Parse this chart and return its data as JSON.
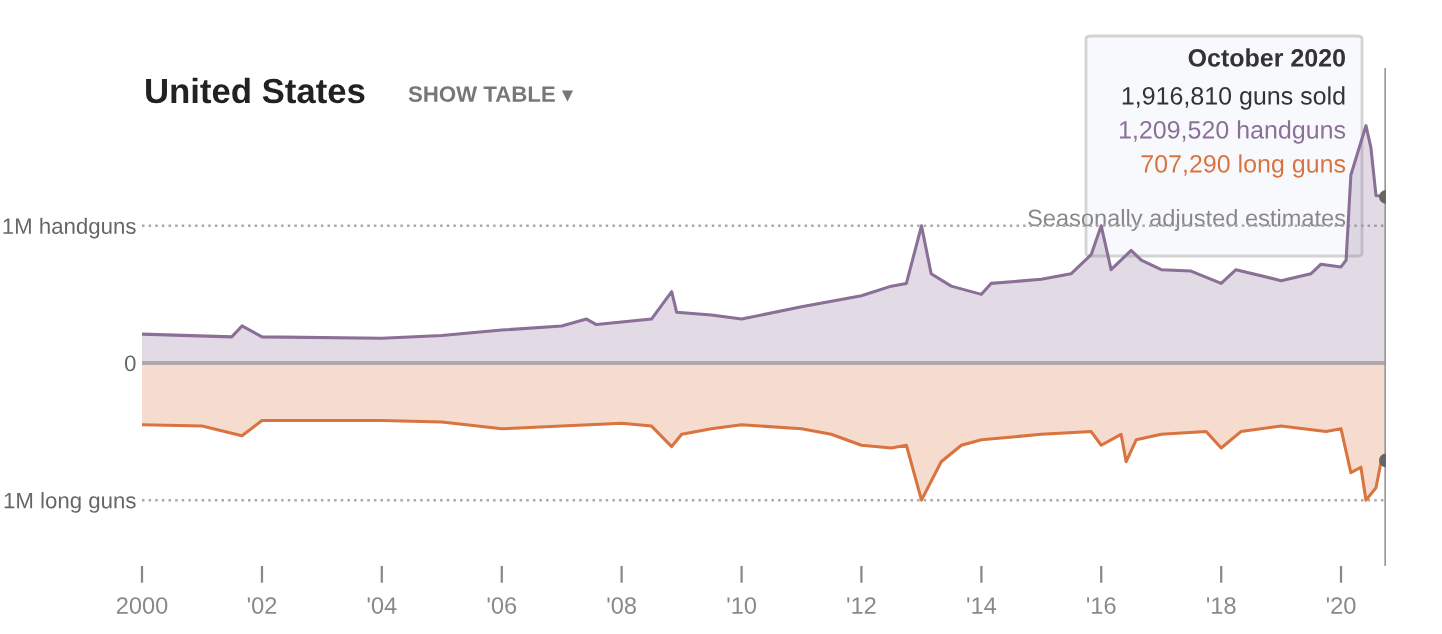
{
  "chart_data": {
    "type": "area",
    "title": "United States",
    "annotations": [
      "SHOW TABLE ▾",
      "October 2020",
      "1,916,810 guns sold",
      "1,209,520 handguns",
      "707,290 long guns",
      "Seasonally adjusted estimates"
    ],
    "series": [
      {
        "color": "#8a6f97",
        "x": [
          "2000-01",
          "2001-07",
          "2001-09",
          "2002-01",
          "2004-01",
          "2005-01",
          "2006-01",
          "2007-01",
          "2007-06",
          "2007-08",
          "2008-07",
          "2008-11",
          "2008-12",
          "2009-07",
          "2010-01",
          "2011-01",
          "2012-01",
          "2012-07",
          "2012-10",
          "2013-01",
          "2013-03",
          "2013-07",
          "2014-01",
          "2014-03",
          "2015-01",
          "2015-07",
          "2015-11",
          "2016-01",
          "2016-03",
          "2016-07",
          "2016-09",
          "2017-01",
          "2017-07",
          "2018-01",
          "2018-04",
          "2019-01",
          "2019-07",
          "2019-09",
          "2020-01",
          "2020-02",
          "2020-03",
          "2020-06",
          "2020-07",
          "2020-08",
          "2020-10"
        ],
        "values": [
          210000,
          190000,
          270000,
          190000,
          180000,
          200000,
          240000,
          270000,
          320000,
          280000,
          320000,
          520000,
          370000,
          350000,
          320000,
          410000,
          490000,
          560000,
          580000,
          1000000,
          650000,
          560000,
          500000,
          580000,
          610000,
          650000,
          790000,
          1000000,
          680000,
          820000,
          750000,
          680000,
          670000,
          580000,
          680000,
          600000,
          650000,
          720000,
          700000,
          750000,
          1370000,
          1730000,
          1570000,
          1220000,
          1210000
        ]
      },
      {
        "color": "#d9733f",
        "x": [
          "2000-01",
          "2001-01",
          "2001-09",
          "2002-01",
          "2004-01",
          "2005-01",
          "2006-01",
          "2007-01",
          "2008-01",
          "2008-07",
          "2008-11",
          "2009-01",
          "2009-07",
          "2010-01",
          "2011-01",
          "2011-07",
          "2012-01",
          "2012-07",
          "2012-10",
          "2013-01",
          "2013-05",
          "2013-09",
          "2014-01",
          "2015-01",
          "2015-11",
          "2016-01",
          "2016-05",
          "2016-06",
          "2016-08",
          "2017-01",
          "2017-10",
          "2018-01",
          "2018-05",
          "2019-01",
          "2019-10",
          "2020-01",
          "2020-03",
          "2020-05",
          "2020-06",
          "2020-08",
          "2020-09",
          "2020-10"
        ],
        "values": [
          -450000,
          -460000,
          -530000,
          -420000,
          -420000,
          -430000,
          -480000,
          -460000,
          -440000,
          -460000,
          -610000,
          -520000,
          -480000,
          -450000,
          -480000,
          -520000,
          -600000,
          -620000,
          -600000,
          -1000000,
          -720000,
          -600000,
          -560000,
          -520000,
          -500000,
          -600000,
          -520000,
          -720000,
          -560000,
          -520000,
          -500000,
          -620000,
          -500000,
          -460000,
          -500000,
          -480000,
          -800000,
          -760000,
          -1000000,
          -910000,
          -720000,
          -710000
        ]
      }
    ],
    "xlim": [
      "2000-01",
      "2020-10"
    ],
    "xticks": [
      {
        "value": "2000-01",
        "label": "2000"
      },
      {
        "value": "2002-01",
        "label": "'02"
      },
      {
        "value": "2004-01",
        "label": "'04"
      },
      {
        "value": "2006-01",
        "label": "'06"
      },
      {
        "value": "2008-01",
        "label": "'08"
      },
      {
        "value": "2010-01",
        "label": "'10"
      },
      {
        "value": "2012-01",
        "label": "'12"
      },
      {
        "value": "2014-01",
        "label": "'14"
      },
      {
        "value": "2016-01",
        "label": "'16"
      },
      {
        "value": "2018-01",
        "label": "'18"
      },
      {
        "value": "2020-01",
        "label": "'20"
      }
    ],
    "ylim": [
      -1480000,
      2150000
    ],
    "yticks": [
      {
        "value": 1000000,
        "label": "1M handguns"
      },
      0,
      {
        "value": -1000000,
        "label": "1M long guns"
      }
    ],
    "grid": "y",
    "line_style": "solid",
    "marker": "none",
    "legend": false,
    "ref_lines": [
      {
        "axis": "y",
        "value": 0,
        "color": "#b0a8a8"
      },
      {
        "axis": "x",
        "value": "2020-10",
        "color": "#999999"
      }
    ]
  }
}
